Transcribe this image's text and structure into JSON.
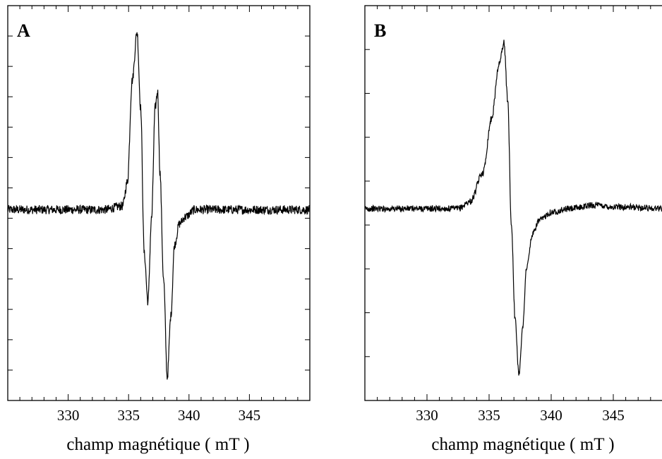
{
  "chart_data": [
    {
      "type": "line",
      "panel_label": "A",
      "xlabel": "champ magnétique ( mT )",
      "ylabel": "",
      "xticks": [
        330,
        335,
        340,
        345
      ],
      "xlim": [
        325,
        350
      ],
      "ylim": [
        -1.0,
        1.0
      ],
      "grid": false,
      "legend": "none",
      "baseline": 0.0,
      "noise_amplitude": 0.025,
      "series": [
        {
          "x": [
            325,
            333,
            334.5,
            334.9,
            335.3,
            335.7,
            336.0,
            336.3,
            336.6,
            336.9,
            337.2,
            337.4,
            337.6,
            337.9,
            338.2,
            338.5,
            338.8,
            339.2,
            339.7,
            340.5,
            342,
            350
          ],
          "y": [
            0.0,
            0.0,
            0.02,
            0.15,
            0.7,
            0.96,
            0.55,
            -0.25,
            -0.52,
            -0.05,
            0.55,
            0.64,
            0.2,
            -0.4,
            -0.95,
            -0.6,
            -0.2,
            -0.08,
            -0.04,
            0.0,
            0.0,
            0.0
          ]
        }
      ]
    },
    {
      "type": "line",
      "panel_label": "B",
      "xlabel": "champ magnétique ( mT )",
      "ylabel": "",
      "xticks": [
        330,
        335,
        340,
        345
      ],
      "xlim": [
        325,
        350
      ],
      "ylim": [
        -1.0,
        1.0
      ],
      "grid": false,
      "legend": "none",
      "baseline": 0.0,
      "noise_amplitude": 0.018,
      "series": [
        {
          "x": [
            325,
            332.5,
            333.5,
            334.5,
            335.2,
            335.8,
            336.2,
            336.5,
            336.8,
            337.1,
            337.4,
            337.7,
            338.0,
            338.5,
            339.0,
            340.0,
            341.5,
            343.5,
            345,
            350
          ],
          "y": [
            0.0,
            0.0,
            0.04,
            0.2,
            0.5,
            0.8,
            0.92,
            0.6,
            -0.1,
            -0.65,
            -0.96,
            -0.7,
            -0.35,
            -0.15,
            -0.07,
            -0.02,
            0.0,
            0.02,
            0.01,
            0.0
          ]
        }
      ]
    }
  ]
}
